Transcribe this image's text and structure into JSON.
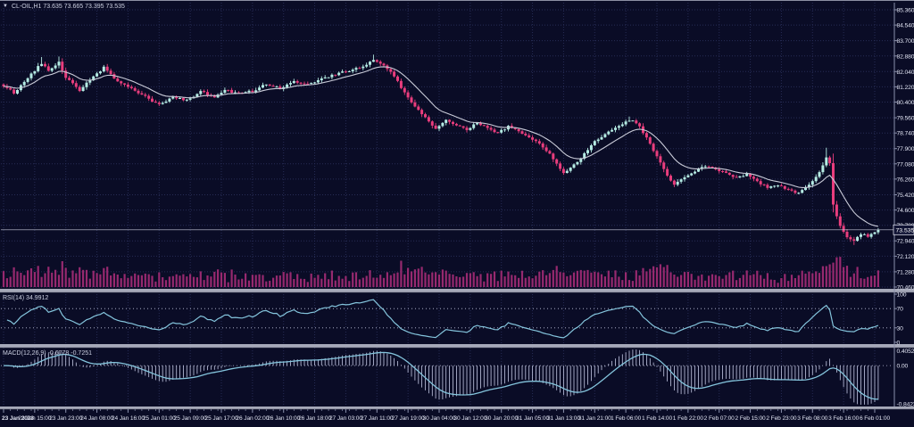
{
  "chart_data": {
    "type": "candlestick",
    "symbol": "CL-OIL",
    "timeframe": "H1",
    "title": "CL-OIL,H1 73.635 73.665 73.395 73.535",
    "ohlc": {
      "open": "73.635",
      "high": "73.665",
      "low": "73.395",
      "close": "73.535"
    },
    "current_price": "73.535",
    "candles_count": 254,
    "close_waypoints": [
      [
        0,
        81.3
      ],
      [
        3,
        80.9
      ],
      [
        6,
        81.5
      ],
      [
        9,
        82.1
      ],
      [
        11,
        82.5
      ],
      [
        13,
        82.1
      ],
      [
        16,
        82.55
      ],
      [
        18,
        81.7
      ],
      [
        22,
        81.05
      ],
      [
        25,
        81.6
      ],
      [
        29,
        82.25
      ],
      [
        33,
        81.5
      ],
      [
        37,
        81.15
      ],
      [
        41,
        80.7
      ],
      [
        45,
        80.25
      ],
      [
        49,
        80.7
      ],
      [
        53,
        80.5
      ],
      [
        57,
        80.95
      ],
      [
        61,
        80.7
      ],
      [
        64,
        81.05
      ],
      [
        68,
        80.85
      ],
      [
        72,
        81.0
      ],
      [
        76,
        81.35
      ],
      [
        80,
        81.15
      ],
      [
        84,
        81.5
      ],
      [
        88,
        81.35
      ],
      [
        92,
        81.65
      ],
      [
        96,
        81.9
      ],
      [
        100,
        82.1
      ],
      [
        104,
        82.3
      ],
      [
        107,
        82.65
      ],
      [
        110,
        82.4
      ],
      [
        113,
        81.8
      ],
      [
        116,
        80.9
      ],
      [
        119,
        80.2
      ],
      [
        122,
        79.55
      ],
      [
        125,
        79.0
      ],
      [
        128,
        79.5
      ],
      [
        131,
        79.15
      ],
      [
        134,
        78.9
      ],
      [
        137,
        79.3
      ],
      [
        140,
        79.0
      ],
      [
        143,
        78.75
      ],
      [
        146,
        79.1
      ],
      [
        149,
        78.85
      ],
      [
        152,
        78.5
      ],
      [
        155,
        78.2
      ],
      [
        158,
        77.6
      ],
      [
        160,
        77.1
      ],
      [
        162,
        76.6
      ],
      [
        164,
        76.85
      ],
      [
        166,
        77.2
      ],
      [
        168,
        77.6
      ],
      [
        171,
        78.3
      ],
      [
        174,
        78.7
      ],
      [
        177,
        79.0
      ],
      [
        180,
        79.35
      ],
      [
        182,
        79.45
      ],
      [
        184,
        79.05
      ],
      [
        186,
        78.5
      ],
      [
        188,
        77.8
      ],
      [
        190,
        77.1
      ],
      [
        192,
        76.4
      ],
      [
        194,
        75.95
      ],
      [
        197,
        76.35
      ],
      [
        200,
        76.7
      ],
      [
        203,
        76.95
      ],
      [
        206,
        76.8
      ],
      [
        209,
        76.6
      ],
      [
        212,
        76.35
      ],
      [
        215,
        76.5
      ],
      [
        218,
        76.1
      ],
      [
        221,
        75.8
      ],
      [
        224,
        75.95
      ],
      [
        227,
        75.65
      ],
      [
        230,
        75.5
      ],
      [
        232,
        75.85
      ],
      [
        234,
        76.15
      ],
      [
        236,
        76.65
      ],
      [
        238,
        77.4
      ],
      [
        239,
        77.15
      ],
      [
        240,
        74.9
      ],
      [
        242,
        73.7
      ],
      [
        244,
        73.15
      ],
      [
        246,
        72.95
      ],
      [
        248,
        73.3
      ],
      [
        250,
        73.2
      ],
      [
        253,
        73.535
      ]
    ],
    "spike_wicks": [
      [
        11,
        82.82
      ],
      [
        16,
        82.85
      ],
      [
        107,
        82.95
      ],
      [
        181,
        79.62
      ],
      [
        238,
        77.95
      ],
      [
        246,
        72.72
      ]
    ],
    "price_axis": {
      "labels": [
        "85.360",
        "84.540",
        "83.700",
        "82.880",
        "82.040",
        "81.220",
        "80.400",
        "79.560",
        "78.740",
        "77.900",
        "77.080",
        "76.260",
        "75.420",
        "74.600",
        "73.780",
        "72.940",
        "72.120",
        "71.280",
        "70.460"
      ]
    },
    "time_axis": {
      "candles_per_label": 9,
      "labels": [
        "23 Jan 2023",
        "23 Jan 15:00",
        "23 Jan 23:00",
        "24 Jan 08:00",
        "24 Jan 16:00",
        "25 Jan 01:00",
        "25 Jan 09:00",
        "25 Jan 17:00",
        "26 Jan 02:00",
        "26 Jan 10:00",
        "26 Jan 18:00",
        "27 Jan 03:00",
        "27 Jan 11:00",
        "27 Jan 19:00",
        "30 Jan 04:00",
        "30 Jan 12:00",
        "30 Jan 20:00",
        "31 Jan 05:00",
        "31 Jan 13:00",
        "31 Jan 21:00",
        "1 Feb 06:00",
        "1 Feb 14:00",
        "1 Feb 22:00",
        "2 Feb 07:00",
        "2 Feb 15:00",
        "2 Feb 23:00",
        "3 Feb 08:00",
        "3 Feb 16:00",
        "6 Feb 01:00"
      ]
    },
    "moving_average": {
      "period": 13
    },
    "rsi": {
      "label": "RSI(14) 34.9912",
      "period": 14,
      "value": "34.9912",
      "levels": [
        "100",
        "70",
        "30",
        "0"
      ],
      "overbought": 70,
      "oversold": 30
    },
    "macd": {
      "label": "MACD(12,26,9) -0.6778 -0.7251",
      "fast": 12,
      "slow": 26,
      "signal": 9,
      "macd_value": "-0.6778",
      "signal_value": "-0.7251",
      "axis_labels": [
        "0.4052",
        "0.00",
        "-0.8423"
      ]
    },
    "colors": {
      "background": "#0a0c26",
      "grid": "#272c55",
      "bull": "#b5ece4",
      "bear": "#e93d7d",
      "ma": "#c9cbd8",
      "indicator_line": "#84c4dc",
      "histogram": "#c4c9e4",
      "volume": "#97296f",
      "axis_text": "#e0e3f2",
      "axis_line": "#8a90ac",
      "separator": "#a6a9b9",
      "level": "#c2c6de",
      "price_line": "#c6c9da",
      "badge_bg": "#101334",
      "badge_border": "#d8dae6"
    }
  }
}
